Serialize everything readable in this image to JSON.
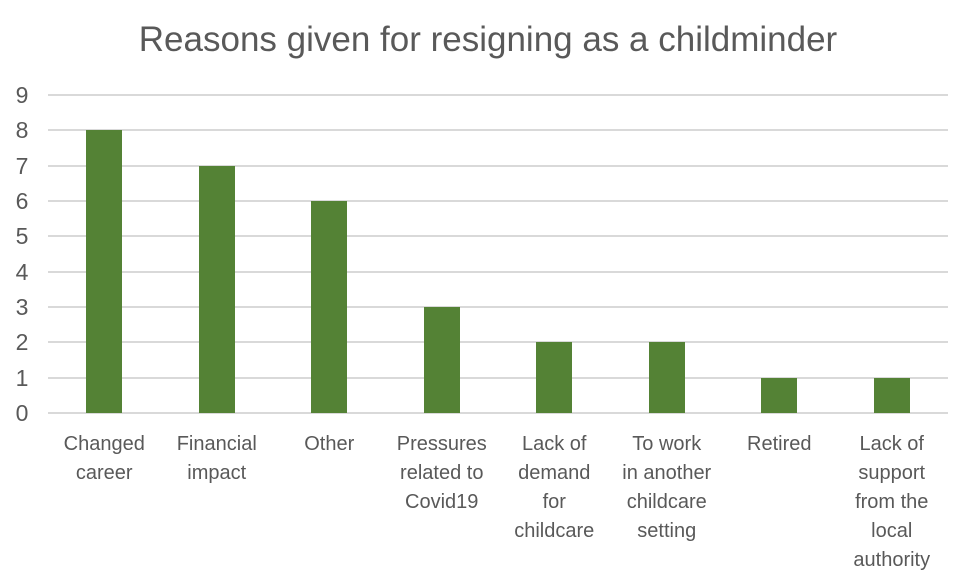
{
  "chart_data": {
    "type": "bar",
    "title": "Reasons given for resigning as a childminder",
    "categories": [
      "Changed career",
      "Financial impact",
      "Other",
      "Pressures related to Covid19",
      "Lack of demand for childcare",
      "To work in another childcare setting",
      "Retired",
      "Lack of support from the local authority"
    ],
    "label_lines": [
      [
        "Changed",
        "career"
      ],
      [
        "Financial",
        "impact"
      ],
      [
        "Other"
      ],
      [
        "Pressures",
        "related to",
        "Covid19"
      ],
      [
        "Lack of",
        "demand",
        "for",
        "childcare"
      ],
      [
        "To work",
        "in another",
        "childcare",
        "setting"
      ],
      [
        "Retired"
      ],
      [
        "Lack of",
        "support",
        "from the",
        "local",
        "authority"
      ]
    ],
    "values": [
      8,
      7,
      6,
      3,
      2,
      2,
      1,
      1
    ],
    "xlabel": "",
    "ylabel": "",
    "ylim": [
      0,
      9
    ],
    "yticks": [
      0,
      1,
      2,
      3,
      4,
      5,
      6,
      7,
      8,
      9
    ],
    "grid": true,
    "legend_position": "none",
    "bar_color": "#548235",
    "gridline_color": "#D9D9D9",
    "text_color": "#595959",
    "background_color": "#FFFFFF"
  }
}
